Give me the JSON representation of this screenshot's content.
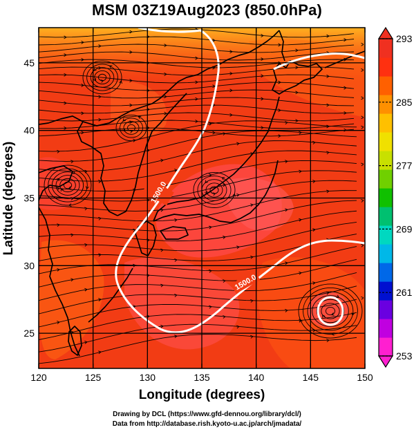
{
  "title": "MSM 03Z19Aug2023 (850.0hPa)",
  "axes": {
    "xlabel": "Longitude (degrees)",
    "ylabel": "Latitude  (degrees)",
    "x_ticks": [
      "120",
      "125",
      "130",
      "135",
      "140",
      "145",
      "150"
    ],
    "y_ticks": [
      "25",
      "30",
      "35",
      "40",
      "45"
    ],
    "x_range": [
      120,
      150
    ],
    "y_range": [
      22.4,
      47.6
    ]
  },
  "colorbar": {
    "labels": [
      "293",
      "285",
      "277",
      "269",
      "261",
      "253"
    ],
    "range": [
      253,
      293
    ],
    "colors": [
      "#ff1fd0",
      "#c000e0",
      "#6a00e0",
      "#0010d0",
      "#0068e8",
      "#00b8e8",
      "#00d8c0",
      "#00c070",
      "#10c000",
      "#70d000",
      "#c8e000",
      "#f0e000",
      "#ffc000",
      "#ff9000",
      "#ff6000",
      "#ff3010",
      "#f03020"
    ]
  },
  "contours": [
    {
      "label": "1500.0"
    },
    {
      "label": "1500.0"
    }
  ],
  "map_colors": {
    "field_main": "#f23c14",
    "field_warm": "#ff4848",
    "field_cool": "#ff6a10",
    "field_north": "#ff8a10",
    "coast": "#000000",
    "contour": "#ffffff"
  },
  "credits": {
    "line1": "Drawing by DCL (https://www.gfd-dennou.org/library/dcl/)",
    "line2": "Data from http://database.rish.kyoto-u.ac.jp/arch/jmadata/"
  }
}
